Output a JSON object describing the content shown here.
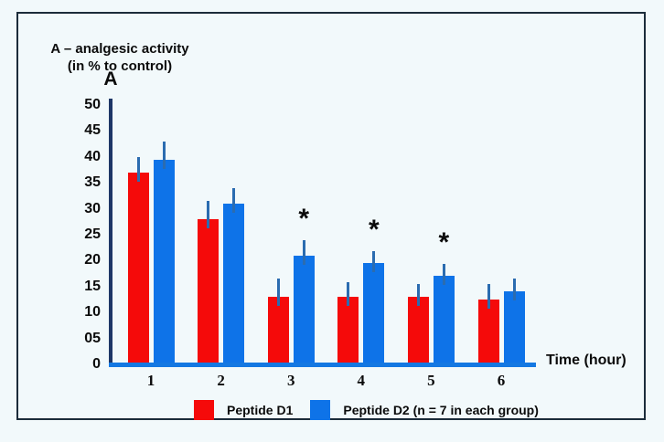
{
  "window": {
    "background_color": "#f2f9fb",
    "frame_border_color": "#1c2c3a"
  },
  "chart_data": {
    "type": "bar",
    "title": "A – analgesic activity",
    "subtitle": "(in % to control)",
    "panel_letter": "A",
    "xlabel": "Time (hour)",
    "ylabel": "analgesic activity (in % to control)",
    "ylim": [
      0,
      50
    ],
    "y_tick_labels": [
      "50",
      "45",
      "40",
      "35",
      "30",
      "25",
      "20",
      "15",
      "10",
      "05",
      "0"
    ],
    "y_tick_values": [
      50,
      45,
      40,
      35,
      30,
      25,
      20,
      15,
      10,
      5,
      0
    ],
    "categories": [
      "1",
      "2",
      "3",
      "4",
      "5",
      "6"
    ],
    "grid": false,
    "legend_position": "bottom",
    "series": [
      {
        "name": "Peptide D1",
        "color": "#f50a0a",
        "values": [
          37,
          28,
          13,
          13,
          13,
          12.5
        ],
        "errors": [
          3,
          3.5,
          3.5,
          2.8,
          2.5,
          3
        ]
      },
      {
        "name": "Peptide D2 (n = 7 in each group)",
        "color": "#0e73e8",
        "values": [
          39.5,
          31,
          21,
          19.5,
          17,
          14
        ],
        "errors": [
          3.5,
          3,
          3,
          2.3,
          2.3,
          2.6
        ]
      }
    ],
    "significance_marks": [
      {
        "symbol": "*",
        "series_index": 1,
        "category_index": 2
      },
      {
        "symbol": "*",
        "series_index": 1,
        "category_index": 3
      },
      {
        "symbol": "*",
        "series_index": 1,
        "category_index": 4
      }
    ],
    "error_bar_color": "#2b6cb0",
    "y_axis_color": "#1e3767",
    "x_axis_color": "#1478e2"
  }
}
